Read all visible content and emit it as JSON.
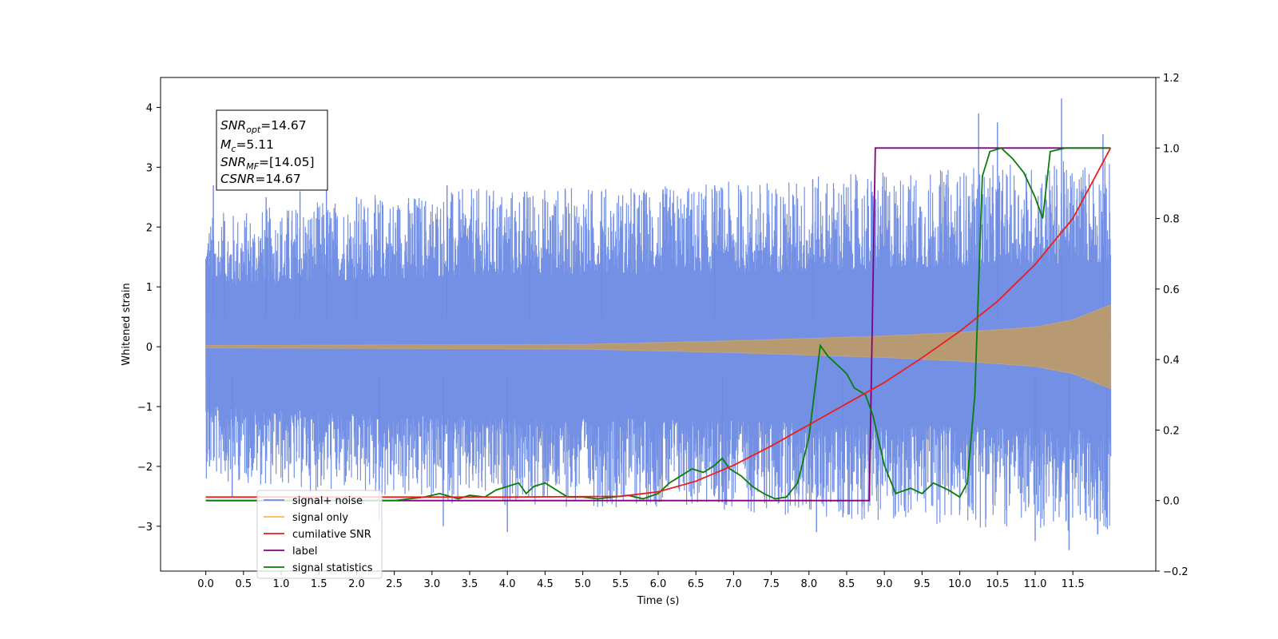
{
  "chart_data": {
    "type": "line",
    "xlabel": "Time (s)",
    "ylabel_left": "Whitened strain",
    "ylabel_right": "",
    "xlim": [
      -0.6,
      12.6
    ],
    "ylim_left": [
      -3.75,
      4.5
    ],
    "ylim_right": [
      -0.2,
      1.2
    ],
    "x_ticks": [
      "0.0",
      "0.5",
      "1.0",
      "1.5",
      "2.0",
      "2.5",
      "3.0",
      "3.5",
      "4.0",
      "4.5",
      "5.0",
      "5.5",
      "6.0",
      "6.5",
      "7.0",
      "7.5",
      "8.0",
      "8.5",
      "9.0",
      "9.5",
      "10.0",
      "10.5",
      "11.0",
      "11.5"
    ],
    "y_left_ticks": [
      "−3",
      "−2",
      "−1",
      "0",
      "1",
      "2",
      "3",
      "4"
    ],
    "y_right_ticks": [
      "−0.2",
      "0.0",
      "0.2",
      "0.4",
      "0.6",
      "0.8",
      "1.0",
      "1.2"
    ],
    "grid": false,
    "legend_position": "lower-left",
    "annotation": {
      "line1": "SNR",
      "line1_sub": "opt",
      "line1_val": "=14.67",
      "line2": "M",
      "line2_sub": "c",
      "line2_val": "=5.11",
      "line3": "SNR",
      "line3_sub": "MF",
      "line3_val": "=[14.05]",
      "line4": "CSNR",
      "line4_val": "=14.67"
    },
    "series": [
      {
        "name": "signal+ noise",
        "axis": "left",
        "color": "#6c8ae4",
        "style": "dense noise envelope",
        "envelope": {
          "t": [
            0,
            2,
            4,
            6,
            8,
            10,
            12
          ],
          "upper": [
            1.4,
            1.6,
            1.7,
            1.7,
            1.8,
            1.9,
            2.0
          ],
          "lower": [
            -1.4,
            -1.6,
            -1.7,
            -1.7,
            -1.8,
            -1.9,
            -2.0
          ]
        },
        "spikes_max": [
          [
            0.1,
            2.7
          ],
          [
            0.25,
            2.1
          ],
          [
            0.8,
            2.5
          ],
          [
            1.25,
            2.6
          ],
          [
            1.6,
            2.9
          ],
          [
            2.0,
            2.5
          ],
          [
            3.2,
            2.7
          ],
          [
            4.3,
            2.5
          ],
          [
            5.25,
            2.6
          ],
          [
            6.75,
            2.7
          ],
          [
            8.05,
            2.8
          ],
          [
            10.25,
            3.9
          ],
          [
            10.5,
            3.75
          ],
          [
            11.35,
            4.15
          ],
          [
            11.9,
            3.55
          ]
        ],
        "spikes_min": [
          [
            0.05,
            -2.0
          ],
          [
            0.35,
            -2.5
          ],
          [
            2.3,
            -2.9
          ],
          [
            3.15,
            -3.0
          ],
          [
            4.0,
            -3.1
          ],
          [
            6.85,
            -2.6
          ],
          [
            8.1,
            -3.1
          ],
          [
            8.45,
            -2.85
          ],
          [
            11.0,
            -3.25
          ],
          [
            11.45,
            -3.4
          ],
          [
            11.95,
            -2.85
          ]
        ]
      },
      {
        "name": "signal only",
        "axis": "left",
        "color": "#f5b94a",
        "style": "chirp band",
        "amplitude": {
          "t": [
            0,
            5,
            6,
            7,
            8,
            9,
            10,
            11,
            11.5,
            12
          ],
          "amp": [
            0.02,
            0.04,
            0.07,
            0.1,
            0.14,
            0.18,
            0.24,
            0.33,
            0.45,
            0.7
          ]
        }
      },
      {
        "name": "cumilative SNR",
        "axis": "right",
        "color": "#ee1c1c",
        "x": [
          0,
          2,
          4,
          5.5,
          6,
          6.5,
          7,
          7.5,
          8,
          8.5,
          9,
          9.5,
          10,
          10.5,
          11,
          11.5,
          12
        ],
        "y": [
          0.01,
          0.01,
          0.01,
          0.012,
          0.025,
          0.055,
          0.1,
          0.155,
          0.215,
          0.275,
          0.335,
          0.405,
          0.48,
          0.565,
          0.67,
          0.8,
          1.0
        ]
      },
      {
        "name": "label",
        "axis": "right",
        "color": "#800080",
        "x": [
          0,
          8.8,
          8.88,
          12
        ],
        "y": [
          0,
          0,
          1,
          1
        ]
      },
      {
        "name": "signal statistics",
        "axis": "right",
        "color": "#0a7d0a",
        "x": [
          0,
          2.5,
          2.9,
          3.1,
          3.35,
          3.5,
          3.7,
          3.85,
          4.0,
          4.15,
          4.25,
          4.35,
          4.5,
          4.65,
          4.8,
          5.0,
          5.2,
          5.4,
          5.6,
          5.8,
          6.0,
          6.15,
          6.3,
          6.45,
          6.6,
          6.75,
          6.85,
          6.95,
          7.1,
          7.25,
          7.4,
          7.55,
          7.7,
          7.85,
          8.0,
          8.15,
          8.25,
          8.4,
          8.5,
          8.6,
          8.75,
          8.85,
          9.0,
          9.15,
          9.35,
          9.5,
          9.65,
          9.85,
          10.0,
          10.1,
          10.2,
          10.3,
          10.4,
          10.55,
          10.7,
          10.85,
          11.0,
          11.1,
          11.2,
          11.4,
          11.6,
          12.0
        ],
        "y": [
          0,
          0,
          0.01,
          0.02,
          0.005,
          0.015,
          0.01,
          0.03,
          0.04,
          0.05,
          0.02,
          0.04,
          0.05,
          0.03,
          0.01,
          0.01,
          0.005,
          0.01,
          0.015,
          0.005,
          0.02,
          0.05,
          0.07,
          0.09,
          0.08,
          0.1,
          0.12,
          0.09,
          0.07,
          0.04,
          0.02,
          0.005,
          0.01,
          0.05,
          0.18,
          0.44,
          0.41,
          0.38,
          0.36,
          0.32,
          0.3,
          0.24,
          0.1,
          0.02,
          0.035,
          0.02,
          0.05,
          0.03,
          0.01,
          0.05,
          0.3,
          0.92,
          0.99,
          1.0,
          0.97,
          0.93,
          0.86,
          0.8,
          0.99,
          1.0,
          1.0,
          1.0
        ]
      }
    ]
  }
}
